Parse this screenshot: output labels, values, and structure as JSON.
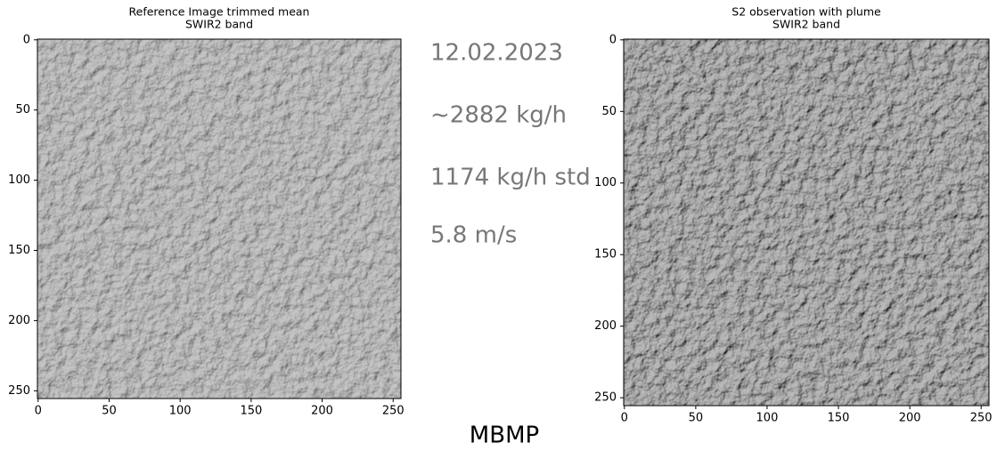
{
  "chart_data": [
    {
      "type": "image",
      "title": "Reference Image trimmed mean",
      "subtitle": "SWIR2 band",
      "xlim": [
        -0.5,
        255.5
      ],
      "ylim": [
        255.5,
        -0.5
      ],
      "xticks": [
        0,
        50,
        100,
        150,
        200,
        250
      ],
      "yticks": [
        0,
        50,
        100,
        150,
        200,
        250
      ]
    },
    {
      "type": "image",
      "title": "S2 observation with plume",
      "subtitle": "SWIR2 band",
      "xlim": [
        -0.5,
        255.5
      ],
      "ylim": [
        255.5,
        -0.5
      ],
      "xticks": [
        0,
        50,
        100,
        150,
        200,
        250
      ],
      "yticks": [
        0,
        50,
        100,
        150,
        200,
        250
      ]
    }
  ],
  "annotations": [
    "12.02.2023",
    "~2882 kg/h",
    "1174 kg/h std",
    "5.8 m/s"
  ],
  "caption": "MBMP"
}
